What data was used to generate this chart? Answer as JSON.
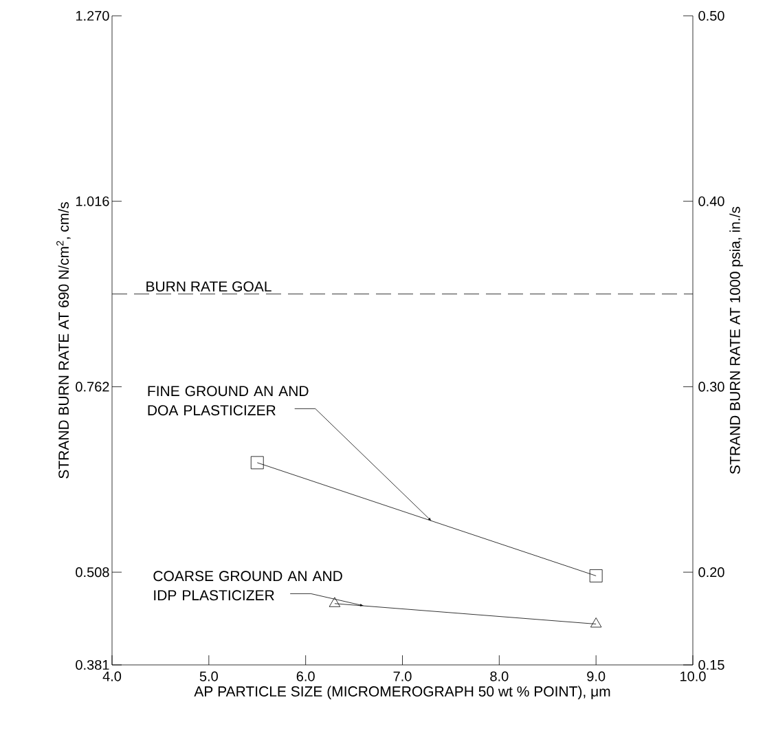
{
  "chart_data": {
    "type": "line",
    "xlabel": "AP PARTICLE SIZE (MICROMEROGRAPH 50 wt % POINT), μm",
    "ylabel": "STRAND BURN RATE AT 690 N/cm$^{2}$, cm/s",
    "y2label": "STRAND BURN RATE AT 1000 psia, in./s",
    "series": [
      {
        "x": [
          5.5,
          9.0
        ],
        "values": [
          0.658,
          0.503
        ],
        "color": "#000000",
        "marker": "square"
      },
      {
        "x": [
          6.3,
          9.0
        ],
        "values": [
          0.465,
          0.437
        ],
        "color": "#000000",
        "marker": "triangle"
      }
    ],
    "xlim": [
      4.0,
      10.0
    ],
    "xticks": [
      {
        "value": 4,
        "label": "4.0"
      },
      {
        "value": 5,
        "label": "5.0"
      },
      {
        "value": 6,
        "label": "6.0"
      },
      {
        "value": 7,
        "label": "7.0"
      },
      {
        "value": 8,
        "label": "8.0"
      },
      {
        "value": 9,
        "label": "9.0"
      },
      {
        "value": 10,
        "label": "10.0"
      }
    ],
    "ylim": [
      0.381,
      1.27
    ],
    "yticks": [
      0.381,
      0.508,
      0.762,
      1.016,
      {
        "value": 1.27,
        "label": "1.270"
      }
    ],
    "y2lim": [
      0.15,
      0.5
    ],
    "y2ticks": [
      0.15,
      {
        "value": 0.2,
        "label": "0.20"
      },
      {
        "value": 0.3,
        "label": "0.30"
      },
      {
        "value": 0.4,
        "label": "0.40"
      },
      {
        "value": 0.5,
        "label": "0.50"
      }
    ],
    "ref_lines": [
      {
        "axis": "y",
        "value": 0.889,
        "label": "BURN RATE GOAL",
        "line_style": "dashed"
      }
    ],
    "annotations": [
      {
        "text": "FINE GROUND AN AND DOA PLASTICIZER",
        "x": 7.3,
        "y": 0.578
      },
      {
        "text": "COARSE GROUND AN AND IDP PLASTICIZER",
        "x": 6.6,
        "y": 0.462
      }
    ],
    "grid": false
  }
}
